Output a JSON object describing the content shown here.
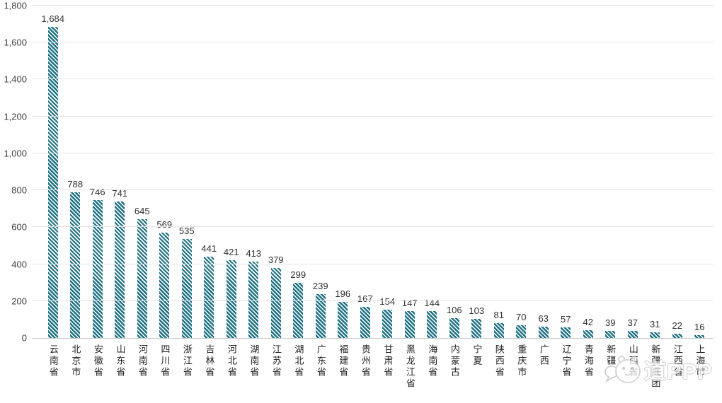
{
  "chart_data": {
    "type": "bar",
    "title": "",
    "xlabel": "",
    "ylabel": "",
    "categories": [
      "云南省",
      "北京市",
      "安徽省",
      "山东省",
      "河南省",
      "四川省",
      "浙江省",
      "吉林省",
      "河北省",
      "湖南省",
      "江苏省",
      "湖北省",
      "广东省",
      "福建省",
      "贵州省",
      "甘肃省",
      "黑龙江省",
      "海南省",
      "内蒙古",
      "宁夏",
      "陕西省",
      "重庆市",
      "广西",
      "辽宁省",
      "青海省",
      "新疆",
      "山西省",
      "新疆兵团",
      "江西省",
      "上海市"
    ],
    "values": [
      1684,
      788,
      746,
      741,
      645,
      569,
      535,
      441,
      421,
      413,
      379,
      299,
      239,
      196,
      167,
      154,
      147,
      144,
      106,
      103,
      81,
      70,
      63,
      57,
      42,
      39,
      37,
      31,
      22,
      16
    ],
    "value_labels": [
      "1,684",
      "788",
      "746",
      "741",
      "645",
      "569",
      "535",
      "441",
      "421",
      "413",
      "379",
      "299",
      "239",
      "196",
      "167",
      "154",
      "147",
      "144",
      "106",
      "103",
      "81",
      "70",
      "63",
      "57",
      "42",
      "39",
      "37",
      "31",
      "22",
      "16"
    ],
    "ylim": [
      0,
      1800
    ],
    "ytick_labels": [
      "0",
      "200",
      "400",
      "600",
      "800",
      "1,000",
      "1,200",
      "1,400",
      "1,600",
      "1,800"
    ],
    "grid": true,
    "legend_position": "none",
    "bar_color": "#1f7283",
    "bar_pattern": "diagonal-stripes"
  },
  "watermark": {
    "text": "道PPP"
  }
}
